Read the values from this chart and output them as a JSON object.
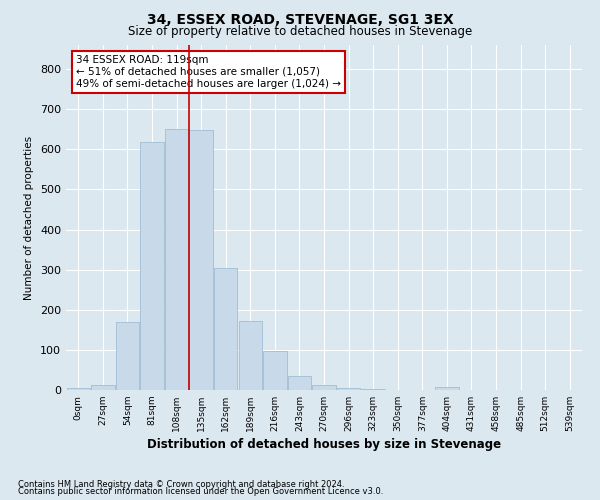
{
  "title": "34, ESSEX ROAD, STEVENAGE, SG1 3EX",
  "subtitle": "Size of property relative to detached houses in Stevenage",
  "xlabel": "Distribution of detached houses by size in Stevenage",
  "ylabel": "Number of detached properties",
  "bar_color": "#c8daea",
  "bar_edge_color": "#a0bdd4",
  "background_color": "#dce8f0",
  "fig_background_color": "#dce8f0",
  "grid_color": "#ffffff",
  "categories": [
    "0sqm",
    "27sqm",
    "54sqm",
    "81sqm",
    "108sqm",
    "135sqm",
    "162sqm",
    "189sqm",
    "216sqm",
    "243sqm",
    "270sqm",
    "296sqm",
    "323sqm",
    "350sqm",
    "377sqm",
    "404sqm",
    "431sqm",
    "458sqm",
    "485sqm",
    "512sqm",
    "539sqm"
  ],
  "values": [
    5,
    12,
    170,
    617,
    650,
    648,
    305,
    172,
    98,
    35,
    12,
    5,
    2,
    1,
    0,
    8,
    0,
    0,
    0,
    0,
    0
  ],
  "ylim": [
    0,
    860
  ],
  "yticks": [
    0,
    100,
    200,
    300,
    400,
    500,
    600,
    700,
    800
  ],
  "vline_x": 4.5,
  "vline_color": "#cc0000",
  "annotation_text": "34 ESSEX ROAD: 119sqm\n← 51% of detached houses are smaller (1,057)\n49% of semi-detached houses are larger (1,024) →",
  "annotation_box_facecolor": "#ffffff",
  "annotation_box_edgecolor": "#cc0000",
  "footer_line1": "Contains HM Land Registry data © Crown copyright and database right 2024.",
  "footer_line2": "Contains public sector information licensed under the Open Government Licence v3.0."
}
